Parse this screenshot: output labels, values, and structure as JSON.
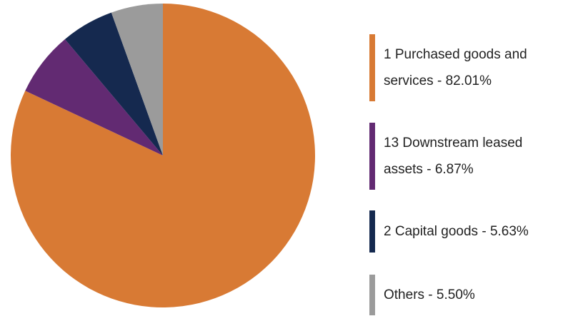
{
  "chart_data": {
    "type": "pie",
    "categories": [
      "1 Purchased goods and services",
      "13 Downstream leased assets",
      "2 Capital goods",
      "Others"
    ],
    "values": [
      82.01,
      6.87,
      5.63,
      5.5
    ],
    "value_labels": [
      "82.01%",
      "6.87%",
      "5.63%",
      "5.50%"
    ],
    "colors": [
      "#d87a34",
      "#622a72",
      "#15294f",
      "#9b9b9b"
    ]
  }
}
